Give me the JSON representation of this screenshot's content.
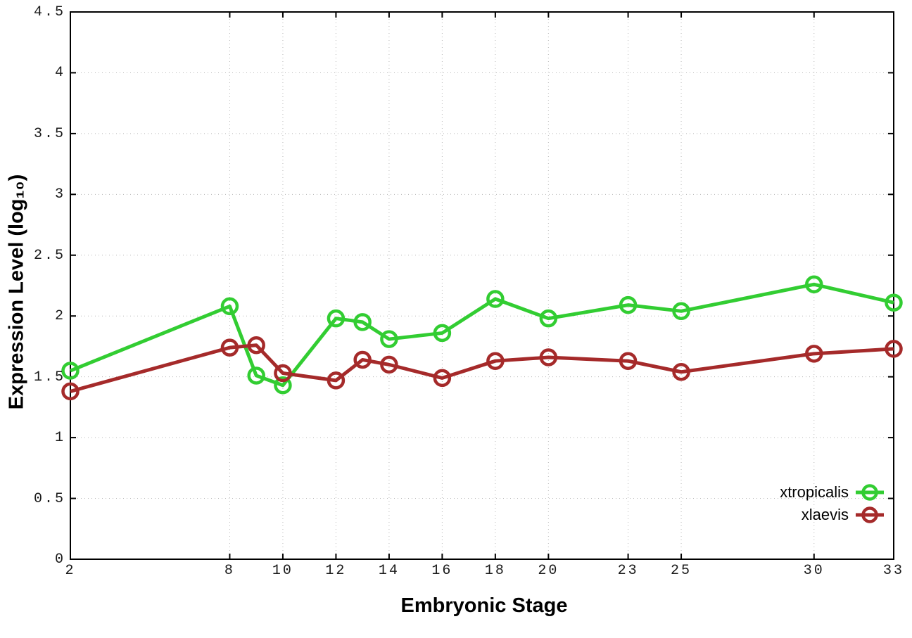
{
  "chart_data": {
    "type": "line",
    "title": "",
    "xlabel": "Embryonic Stage",
    "ylabel": "Expression Level (log₁₀)",
    "xlim": [
      2,
      33
    ],
    "ylim": [
      0,
      4.5
    ],
    "grid": true,
    "legend_position": "inside-bottom-right",
    "x_ticks": [
      "2",
      "8",
      "10",
      "12",
      "14",
      "16",
      "18",
      "20",
      "23",
      "25",
      "30",
      "33"
    ],
    "y_ticks": [
      "0",
      "0.5",
      "1",
      "1.5",
      "2",
      "2.5",
      "3",
      "3.5",
      "4",
      "4.5"
    ],
    "x": [
      2,
      8,
      9,
      10,
      12,
      13,
      14,
      16,
      18,
      20,
      23,
      25,
      30,
      33
    ],
    "series": [
      {
        "name": "xtropicalis",
        "color": "#32cd32",
        "values": [
          1.55,
          2.08,
          1.51,
          1.43,
          1.98,
          1.95,
          1.81,
          1.86,
          2.14,
          1.98,
          2.09,
          2.04,
          2.26,
          2.11
        ]
      },
      {
        "name": "xlaevis",
        "color": "#a52a2a",
        "values": [
          1.38,
          1.74,
          1.76,
          1.53,
          1.47,
          1.64,
          1.6,
          1.49,
          1.63,
          1.66,
          1.63,
          1.54,
          1.69,
          1.73
        ]
      }
    ],
    "axis_color": "#000000",
    "grid_color": "#b8b8b8"
  }
}
